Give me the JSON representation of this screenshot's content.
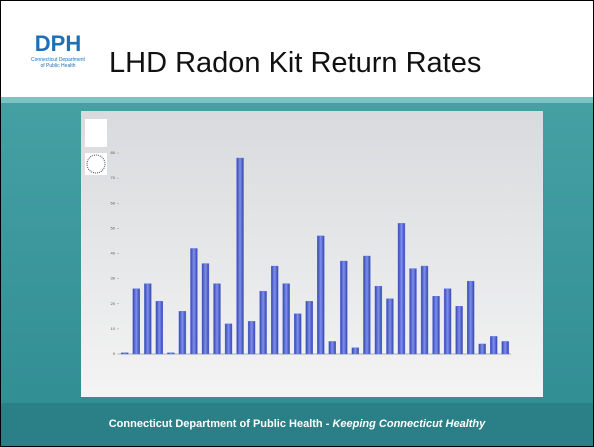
{
  "logo": {
    "text": "DPH",
    "caption": "Connecticut Department of Public Health"
  },
  "slide_title": "LHD Radon Kit Return Rates",
  "footer": {
    "org": "Connecticut Department of Public Health",
    "separator": "-",
    "tagline": "Keeping Connecticut Healthy"
  },
  "chart_data": {
    "type": "bar",
    "categories": [
      null,
      null,
      null,
      null,
      null,
      null,
      null,
      null,
      null,
      null,
      null,
      null,
      null,
      null,
      null,
      null,
      null,
      null,
      null,
      null,
      null,
      null,
      null,
      null,
      null,
      null,
      null,
      null,
      null,
      null,
      null,
      null,
      null,
      null
    ],
    "values": [
      0.5,
      26,
      28,
      21,
      0.5,
      17,
      42,
      36,
      28,
      12,
      78,
      13,
      25,
      35,
      28,
      16,
      21,
      47,
      5,
      37,
      2.5,
      39,
      27,
      22,
      52,
      34,
      35,
      23,
      26,
      19,
      29,
      4,
      7,
      5
    ],
    "color": "#5b6fe0",
    "ylim": [
      0,
      80
    ],
    "yticks": [
      0,
      10,
      20,
      30,
      40,
      50,
      60,
      70,
      80
    ]
  }
}
